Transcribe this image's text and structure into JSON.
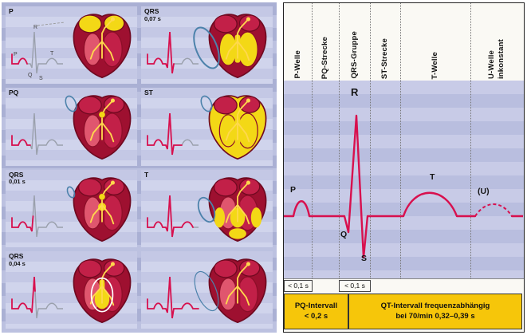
{
  "colors": {
    "ecg_red": "#d8104e",
    "trace_grey": "#9aa0ac",
    "heart_dark": "#9e1030",
    "heart_mid": "#c22048",
    "heart_light": "#e0566e",
    "active_yellow": "#f3d816",
    "conduction_yellow": "#ffd84d",
    "loop_blue": "#4c82ab",
    "interval_yellow": "#f6c60a"
  },
  "left_panels": [
    {
      "label": "P",
      "sub": "",
      "phase": "p",
      "regions": [
        "atria"
      ],
      "loop": "none",
      "annotated": true
    },
    {
      "label": "QRS",
      "sub": "0,07 s",
      "phase": "qrs007",
      "regions": [
        "vent-most"
      ],
      "loop": "large",
      "annotated": false
    },
    {
      "label": "PQ",
      "sub": "",
      "phase": "pq",
      "regions": [
        "av"
      ],
      "loop": "small",
      "annotated": false
    },
    {
      "label": "ST",
      "sub": "",
      "phase": "st",
      "regions": [
        "vent-full"
      ],
      "loop": "small",
      "annotated": false
    },
    {
      "label": "QRS",
      "sub": "0,01 s",
      "phase": "qrs001",
      "regions": [
        "av",
        "septum-start"
      ],
      "loop": "tiny",
      "annotated": false
    },
    {
      "label": "T",
      "sub": "",
      "phase": "t",
      "regions": [
        "t-phase",
        "mid"
      ],
      "loop": "medium",
      "annotated": false
    },
    {
      "label": "QRS",
      "sub": "0,04 s",
      "phase": "qrs004",
      "regions": [
        "septum",
        "mid",
        "whiteloop"
      ],
      "loop": "none",
      "annotated": false
    },
    {
      "label": "",
      "sub": "",
      "phase": "full",
      "regions": [],
      "loop": "large-thin",
      "annotated": false
    }
  ],
  "ecg_annotation_letters": [
    "R",
    "P",
    "Q",
    "S",
    "T"
  ],
  "right": {
    "columns": [
      {
        "label": "P-Welle"
      },
      {
        "label": "PQ-Strecke"
      },
      {
        "label": "QRS-Gruppe"
      },
      {
        "label": "ST-Strecke"
      },
      {
        "label": "T-Welle"
      },
      {
        "label": "U-Welle\ninkonstant"
      }
    ],
    "wave_labels": {
      "P": "P",
      "Q": "Q",
      "R": "R",
      "S": "S",
      "T": "T",
      "U": "(U)"
    },
    "duration_p": "< 0,1 s",
    "duration_qrs": "< 0,1 s",
    "pq_box": {
      "line1": "PQ-Intervall",
      "line2": "< 0,2 s"
    },
    "qt_box": {
      "line1": "QT-Intervall",
      "line2": "frequenzabhängig",
      "line3": "bei 70/min  0,32–0,39 s"
    }
  }
}
